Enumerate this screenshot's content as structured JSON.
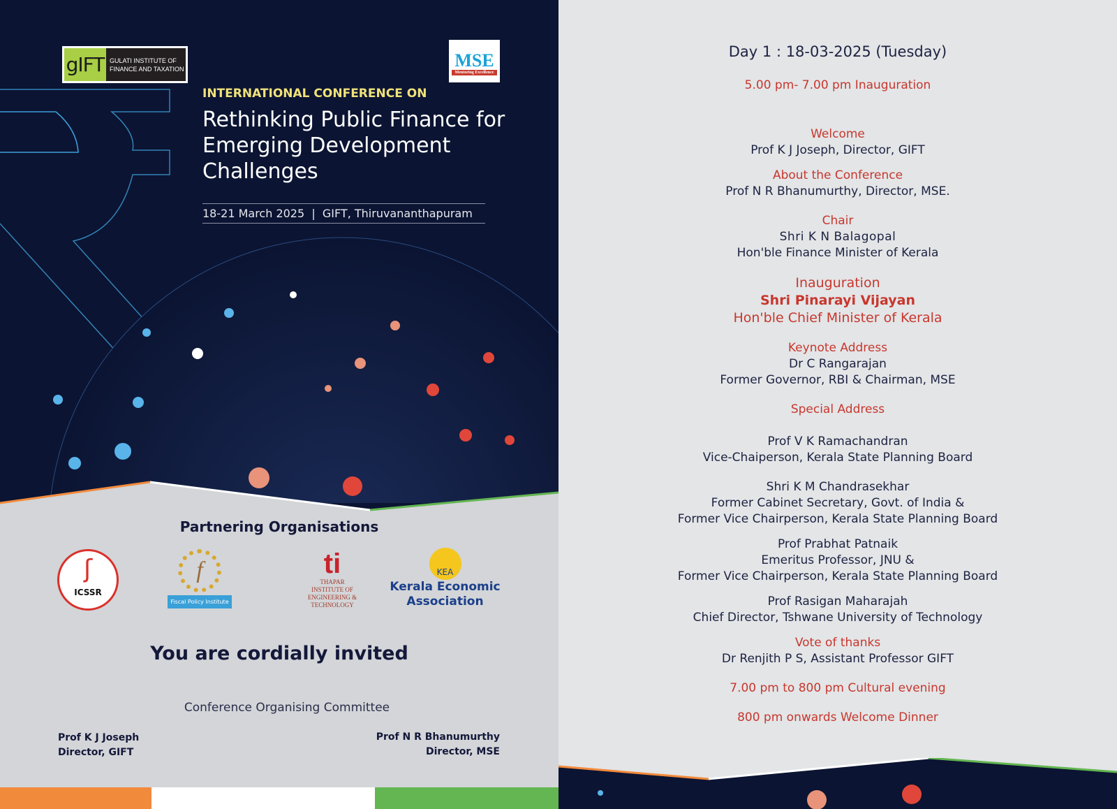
{
  "left": {
    "gift_logo": {
      "mark": "gIFT",
      "text": "GULATI INSTITUTE OF FINANCE AND TAXATION"
    },
    "mse_logo": {
      "mark": "MSE",
      "tagline": "Mentoring Excellence"
    },
    "kicker": "INTERNATIONAL CONFERENCE ON",
    "title": "Rethinking Public Finance for Emerging Development Challenges",
    "dates_venue": "18-21 March 2025  |  GIFT, Thiruvananthapuram",
    "partners_heading": "Partnering Organisations",
    "partners": [
      {
        "name": "ICSSR"
      },
      {
        "name": "Fiscal Policy Institute"
      },
      {
        "name": "THAPAR INSTITUTE OF ENGINEERING & TECHNOLOGY",
        "mark": "ti"
      },
      {
        "name": "Kerala Economic Association",
        "mark": "KEA"
      }
    ],
    "invite": "You are cordially invited",
    "committee": "Conference Organising Committee",
    "signatories": [
      {
        "name": "Prof K J Joseph",
        "role": "Director, GIFT"
      },
      {
        "name": "Prof N R Bhanumurthy",
        "role": "Director, MSE"
      }
    ],
    "colors": {
      "navy": "#0b1432",
      "orange": "#f28a3c",
      "green": "#63b651",
      "accent_yellow": "#f1e27a"
    }
  },
  "right": {
    "day": "Day 1 : 18-03-2025 (Tuesday)",
    "inauguration_time": "5.00 pm- 7.00 pm Inauguration",
    "items": [
      {
        "role": "Welcome",
        "name": "Prof K J Joseph, Director, GIFT"
      },
      {
        "role": "About the Conference",
        "name": "Prof N R Bhanumurthy, Director, MSE."
      },
      {
        "role": "Chair",
        "name": "Shri K N Balagopal",
        "desc": "Hon'ble Finance Minister of Kerala"
      },
      {
        "role": "Inauguration",
        "name": "Shri Pinarayi Vijayan",
        "desc": "Hon'ble Chief Minister of Kerala"
      },
      {
        "role": "Keynote Address",
        "name": "Dr C Rangarajan",
        "desc": "Former Governor, RBI & Chairman, MSE"
      },
      {
        "role": "Special Address"
      },
      {
        "name": "Prof V K Ramachandran",
        "desc": "Vice-Chaiperson, Kerala State Planning Board"
      },
      {
        "name": "Shri K M Chandrasekhar",
        "desc": "Former Cabinet Secretary, Govt. of India &",
        "desc2": "Former Vice Chairperson, Kerala State Planning Board"
      },
      {
        "name": "Prof Prabhat Patnaik",
        "desc": "Emeritus Professor, JNU &",
        "desc2": "Former Vice Chairperson, Kerala State Planning Board"
      },
      {
        "name": "Prof Rasigan Maharajah",
        "desc": "Chief Director, Tshwane University of Technology"
      },
      {
        "role": "Vote of thanks",
        "name": "Dr Renjith P S, Assistant Professor GIFT"
      }
    ],
    "cultural": "7.00 pm to 800 pm Cultural evening",
    "dinner": "800 pm onwards Welcome Dinner",
    "colors": {
      "red": "#c8372d",
      "text": "#1d2240"
    }
  }
}
